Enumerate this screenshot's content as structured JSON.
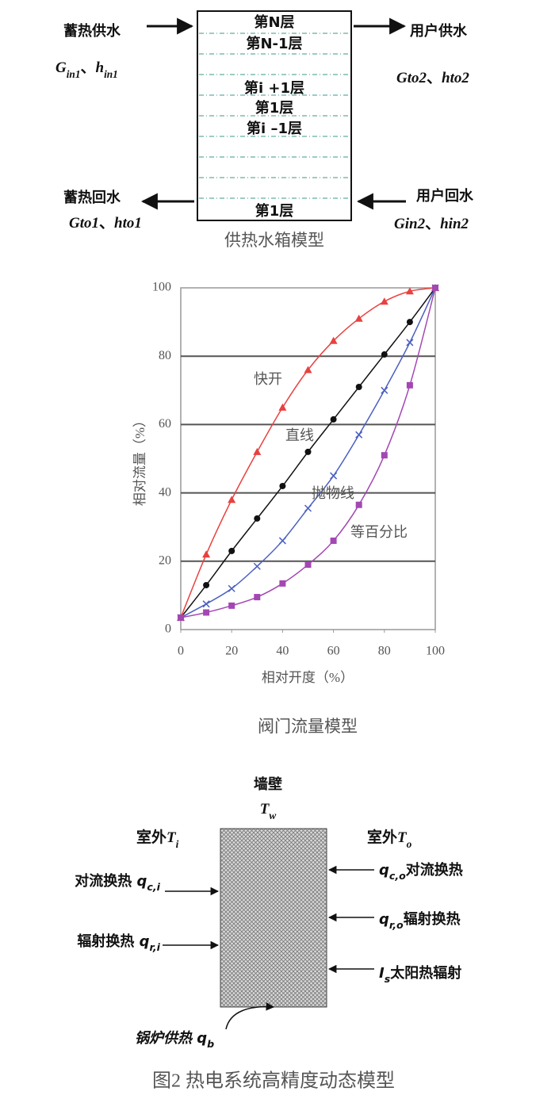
{
  "tank": {
    "layers": [
      "第N层",
      "第N-1层",
      "第i +1层",
      "第1层",
      "第i –1层",
      "第1层"
    ],
    "left_top": {
      "label": "蓄热供水",
      "vars": [
        {
          "t": "G",
          "i": true
        },
        {
          "t": "in1",
          "i": true,
          "sub": true
        },
        {
          "t": "、"
        },
        {
          "t": "h",
          "i": true
        },
        {
          "t": "in1",
          "i": true,
          "sub": true
        }
      ]
    },
    "right_top": {
      "label": "用户供水",
      "vars": [
        {
          "t": "Gto2",
          "i": true
        },
        {
          "t": "、"
        },
        {
          "t": "hto2",
          "i": true
        }
      ]
    },
    "left_bottom": {
      "label": "蓄热回水",
      "vars": [
        {
          "t": "Gto1",
          "i": true
        },
        {
          "t": "、"
        },
        {
          "t": "hto1",
          "i": true
        }
      ]
    },
    "right_bottom": {
      "label": "用户回水",
      "vars": [
        {
          "t": "Gin2",
          "i": true
        },
        {
          "t": "、"
        },
        {
          "t": "hin2",
          "i": true
        }
      ]
    },
    "caption": "供热水箱模型"
  },
  "chart_data": {
    "type": "line",
    "x_label": "相对开度（%）",
    "y_label": "相对流量（%）",
    "caption": "阀门流量模型",
    "x": [
      0,
      10,
      20,
      30,
      40,
      50,
      60,
      70,
      80,
      90,
      100
    ],
    "series": [
      {
        "name": "快开",
        "color": "#e8413f",
        "marker": "triangle",
        "values": [
          3.5,
          22,
          38,
          52,
          65,
          76,
          84.5,
          91,
          96,
          99,
          100
        ]
      },
      {
        "name": "直线",
        "color": "#111111",
        "marker": "circle",
        "values": [
          3.5,
          13,
          23,
          32.5,
          42,
          52,
          61.5,
          71,
          80.5,
          90,
          100
        ]
      },
      {
        "name": "抛物线",
        "color": "#4a5fc1",
        "marker": "cross",
        "values": [
          3.5,
          7.5,
          12,
          18.5,
          26,
          35.5,
          45,
          57,
          70,
          84,
          100
        ]
      },
      {
        "name": "等百分比",
        "color": "#a347b3",
        "marker": "square",
        "values": [
          3.5,
          5,
          7,
          9.5,
          13.5,
          19,
          26,
          36.5,
          51,
          71.5,
          100
        ]
      }
    ],
    "xlim": [
      0,
      100
    ],
    "ylim": [
      0,
      100
    ],
    "xticks": [
      0,
      20,
      40,
      60,
      80,
      100
    ],
    "yticks": [
      0,
      20,
      40,
      60,
      80,
      100
    ],
    "grid": true
  },
  "wall": {
    "title": "墙壁",
    "temp": [
      {
        "t": "T",
        "i": true
      },
      {
        "t": "w",
        "i": true,
        "sub": true
      }
    ],
    "inside": [
      {
        "t": "室外"
      },
      {
        "t": "T",
        "i": true
      },
      {
        "t": "i",
        "i": true,
        "sub": true
      }
    ],
    "outside": [
      {
        "t": "室外"
      },
      {
        "t": "T",
        "i": true
      },
      {
        "t": "o",
        "i": true,
        "sub": true
      }
    ],
    "left": [
      [
        {
          "t": "对流换热 "
        },
        {
          "t": "q",
          "i": true
        },
        {
          "t": "c,i",
          "i": true,
          "sub": true
        }
      ],
      [
        {
          "t": "辐射换热 "
        },
        {
          "t": "q",
          "i": true
        },
        {
          "t": "r,i",
          "i": true,
          "sub": true
        }
      ]
    ],
    "right": [
      [
        {
          "t": "q",
          "i": true
        },
        {
          "t": "c,o",
          "i": true,
          "sub": true
        },
        {
          "t": "对流换热"
        }
      ],
      [
        {
          "t": "q",
          "i": true
        },
        {
          "t": "r,o",
          "i": true,
          "sub": true
        },
        {
          "t": "辐射换热"
        }
      ],
      [
        {
          "t": "I",
          "i": true
        },
        {
          "t": "s",
          "i": true,
          "sub": true
        },
        {
          "t": "太阳热辐射"
        }
      ]
    ],
    "boiler": [
      {
        "t": "锅炉供热 ",
        "i": true
      },
      {
        "t": "q",
        "i": true
      },
      {
        "t": "b",
        "i": true,
        "sub": true
      }
    ]
  },
  "caption": "图2 热电系统高精度动态模型"
}
